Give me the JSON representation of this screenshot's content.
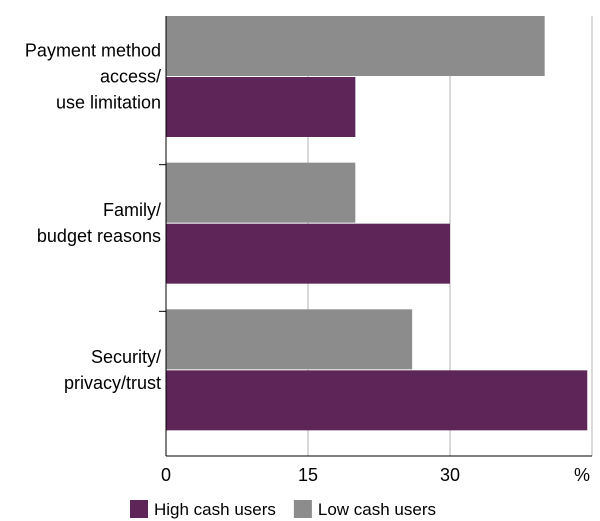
{
  "chart_data": {
    "type": "bar",
    "orientation": "horizontal",
    "categories": [
      [
        "Payment method",
        "access/",
        "use limitation"
      ],
      [
        "Family/",
        "budget reasons"
      ],
      [
        "Security/",
        "privacy/trust"
      ]
    ],
    "series": [
      {
        "name": "Low cash users",
        "color": "#8c8c8c",
        "values": [
          40,
          20,
          26
        ]
      },
      {
        "name": "High cash users",
        "color": "#5e2558",
        "values": [
          20,
          30,
          44.5
        ]
      }
    ],
    "x_ticks": [
      "0",
      "15",
      "30",
      "%"
    ],
    "xlim": [
      0,
      45
    ],
    "grid": true,
    "legend": {
      "placement": "bottom",
      "order": [
        "High cash users",
        "Low cash users"
      ]
    }
  }
}
